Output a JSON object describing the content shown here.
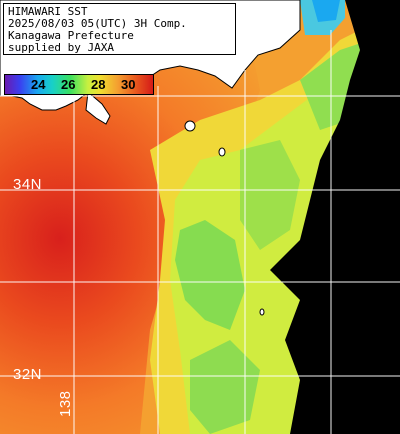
{
  "caption": {
    "line1": "HIMAWARI SST",
    "line2": "2025/08/03 05(UTC) 3H Comp.",
    "line3": "Kanagawa Prefecture",
    "line4": "supplied by JAXA"
  },
  "colorbar": {
    "ticks": [
      "24",
      "26",
      "28",
      "30"
    ],
    "colors": [
      "#6a1ab0",
      "#1aa8f0",
      "#3ae060",
      "#f0e030",
      "#ea5a1e",
      "#d41a18"
    ]
  },
  "grid": {
    "lat_labels": [
      "34N",
      "32N"
    ],
    "lon_labels": [
      "138"
    ]
  },
  "colors": {
    "land": "#ffffff",
    "nodata": "#000000",
    "warm": "#ea4a1e",
    "mid": "#f4a030",
    "cool": "#c8e840",
    "cold": "#6ad860",
    "grid": "#ffffff"
  }
}
